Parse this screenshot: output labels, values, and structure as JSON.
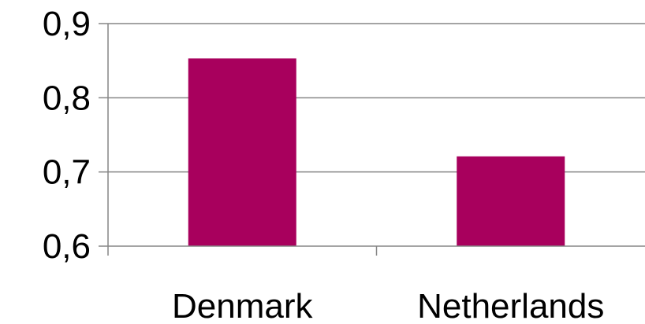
{
  "chart_data": {
    "type": "bar",
    "categories": [
      "Denmark",
      "Netherlands"
    ],
    "values": [
      0.853,
      0.721
    ],
    "ylim": [
      0.6,
      0.9
    ],
    "yticks": [
      0.6,
      0.7,
      0.8,
      0.9
    ],
    "ytick_labels": [
      "0,6",
      "0,7",
      "0,8",
      "0,9"
    ],
    "grid": true,
    "legend": "none",
    "colors": {
      "bar": "#A8005D",
      "grid": "#868686",
      "axis": "#868686",
      "text": "#000000"
    }
  }
}
